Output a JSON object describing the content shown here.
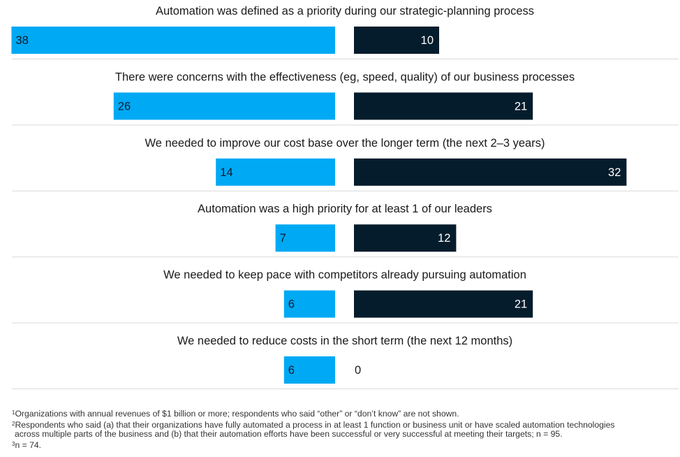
{
  "chart_data": {
    "type": "bar",
    "orientation": "horizontal-diverging",
    "categories": [
      "Automation was defined as a priority during our strategic-planning process",
      "There were concerns with the effectiveness (eg, speed, quality) of our business processes",
      "We needed to improve our cost base over the longer term (the next 2–3 years)",
      "Automation was a high priority for at least 1 of our leaders",
      "We needed to keep pace with competitors already pursuing automation",
      "We needed to reduce costs in the short term (the next 12 months)"
    ],
    "series": [
      {
        "color": "#00a9f4",
        "values": [
          38,
          26,
          14,
          7,
          6,
          6
        ],
        "direction": "left"
      },
      {
        "color": "#051c2c",
        "values": [
          10,
          21,
          32,
          12,
          21,
          0
        ],
        "direction": "right"
      }
    ],
    "grid": false,
    "legend": "none"
  },
  "footnotes": {
    "n1": "1",
    "t1": "Organizations with annual revenues of $1 billion or more; respondents who said “other” or “don’t know” are not shown.",
    "n2": "2",
    "t2a": "Respondents who said (a) that their organizations have fully automated a process in at least 1 function or business unit or have scaled automation technologies",
    "t2b": "across multiple parts of the business and (b) that their automation efforts have been successful or very successful at meeting their targets; n = 95.",
    "n3": "3",
    "t3": "n = 74."
  }
}
